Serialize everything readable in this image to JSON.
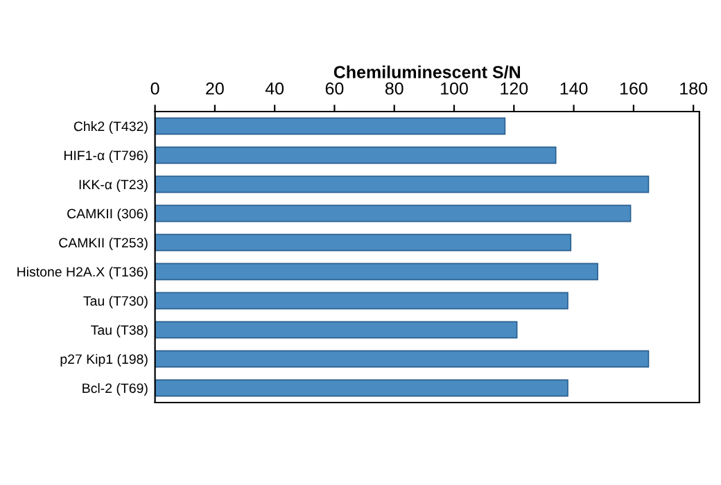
{
  "chart_data": {
    "type": "bar",
    "orientation": "horizontal",
    "xlabel": "Chemiluminescent S/N",
    "categories": [
      "Chk2 (T432)",
      "HIF1-α (T796)",
      "IKK-α (T23)",
      "CAMKII (306)",
      "CAMKII (T253)",
      "Histone H2A.X (T136)",
      "Tau (T730)",
      "Tau (T38)",
      "p27 Kip1 (198)",
      "Bcl-2 (T69)"
    ],
    "values": [
      117,
      134,
      165,
      159,
      139,
      148,
      138,
      121,
      165,
      138
    ],
    "color": "#4a8cc2",
    "xlim": [
      0,
      182
    ],
    "xticks": [
      0,
      20,
      40,
      60,
      80,
      100,
      120,
      140,
      160,
      180
    ],
    "grid": false,
    "legend": false
  }
}
